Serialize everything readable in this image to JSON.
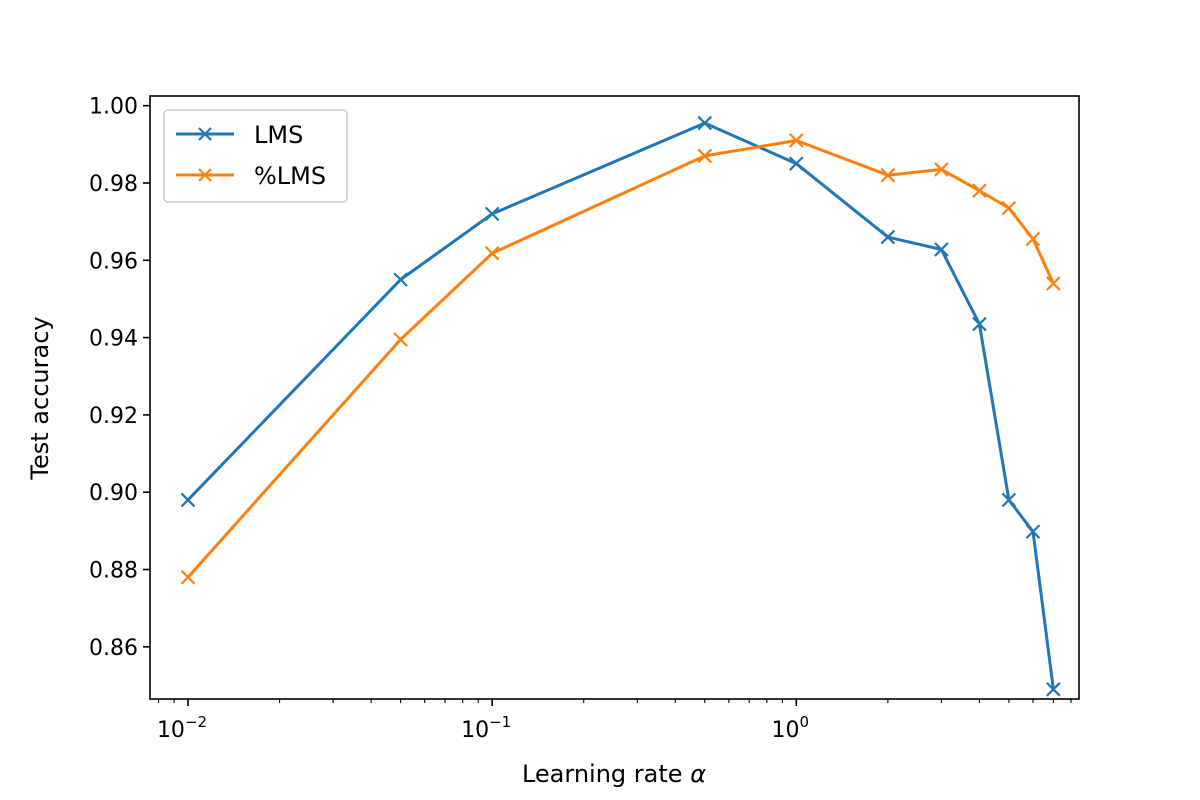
{
  "chart_data": {
    "type": "line",
    "title": "",
    "xlabel": "Learning rate",
    "xlabel_symbol": "α",
    "ylabel": "Test accuracy",
    "xscale": "log",
    "xlim": [
      0.0075,
      8.5
    ],
    "ylim": [
      0.8465,
      1.0025
    ],
    "grid": false,
    "legend_position": "top-left",
    "x_ticks": [
      {
        "value": 0.01,
        "base": "10",
        "exp": "−2"
      },
      {
        "value": 0.1,
        "base": "10",
        "exp": "−1"
      },
      {
        "value": 1,
        "base": "10",
        "exp": "0"
      }
    ],
    "y_ticks": [
      "0.86",
      "0.88",
      "0.90",
      "0.92",
      "0.94",
      "0.96",
      "0.98",
      "1.00"
    ],
    "series": [
      {
        "name": "LMS",
        "color": "#1f77b4",
        "marker": "x",
        "x": [
          0.01,
          0.05,
          0.1,
          0.5,
          1,
          2,
          3,
          4,
          5,
          6,
          7
        ],
        "y": [
          0.898,
          0.955,
          0.972,
          0.9955,
          0.985,
          0.966,
          0.9628,
          0.9435,
          0.898,
          0.8898,
          0.849
        ]
      },
      {
        "name": "%LMS",
        "color": "#ff7f0e",
        "marker": "x",
        "x": [
          0.01,
          0.05,
          0.1,
          0.5,
          1,
          2,
          3,
          4,
          5,
          6,
          7
        ],
        "y": [
          0.878,
          0.9395,
          0.9618,
          0.987,
          0.991,
          0.982,
          0.9835,
          0.978,
          0.9735,
          0.9655,
          0.954
        ]
      }
    ]
  }
}
